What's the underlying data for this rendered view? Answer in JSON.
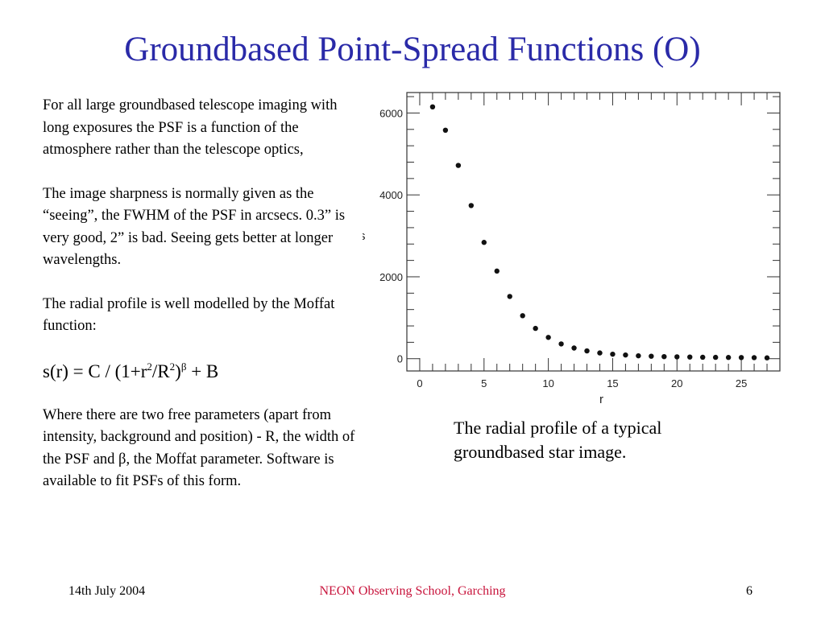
{
  "slide": {
    "title": "Groundbased Point-Spread Functions (O)",
    "paragraphs": [
      "For all large groundbased telescope imaging with long exposures the PSF is a function of the atmosphere rather than the telescope optics,",
      "The image sharpness is normally given as the “seeing”, the FWHM of the PSF in arcsecs. 0.3” is very good, 2” is bad. Seeing gets better at longer wavelengths.",
      "The radial profile is well modelled by the Moffat function:"
    ],
    "formula": {
      "part1": "s(r) = C / (1+r",
      "sup1": "2",
      "part2": "/R",
      "sup2": "2",
      "part3": ")",
      "sup3": "β",
      "part4": " + B"
    },
    "paragraph_last": "Where there are two free parameters (apart from intensity, background and position) - R, the width of the PSF and β, the Moffat parameter. Software is available to fit PSFs of this form.",
    "caption": "The radial profile of a typical groundbased star image."
  },
  "footer": {
    "date": "14th July 2004",
    "event": "NEON Observing School, Garching",
    "page": "6"
  },
  "colors": {
    "title": "#2a2aa8",
    "footer_center": "#c8143c"
  },
  "chart_data": {
    "type": "scatter",
    "xlabel": "r",
    "ylabel": "s",
    "xlim": [
      -1,
      28
    ],
    "ylim": [
      -300,
      6500
    ],
    "xticks": [
      "0",
      "5",
      "10",
      "15",
      "20",
      "25"
    ],
    "yticks": [
      "0",
      "2000",
      "4000",
      "6000"
    ],
    "grid": false,
    "x": [
      1,
      2,
      3,
      4,
      5,
      6,
      7,
      8,
      9,
      10,
      11,
      12,
      13,
      14,
      15,
      16,
      17,
      18,
      19,
      20,
      21,
      22,
      23,
      24,
      25,
      26,
      27
    ],
    "y": [
      6150,
      5580,
      4720,
      3740,
      2840,
      2140,
      1520,
      1050,
      740,
      520,
      360,
      260,
      190,
      140,
      110,
      90,
      70,
      60,
      50,
      45,
      40,
      35,
      32,
      30,
      28,
      25,
      20
    ]
  }
}
